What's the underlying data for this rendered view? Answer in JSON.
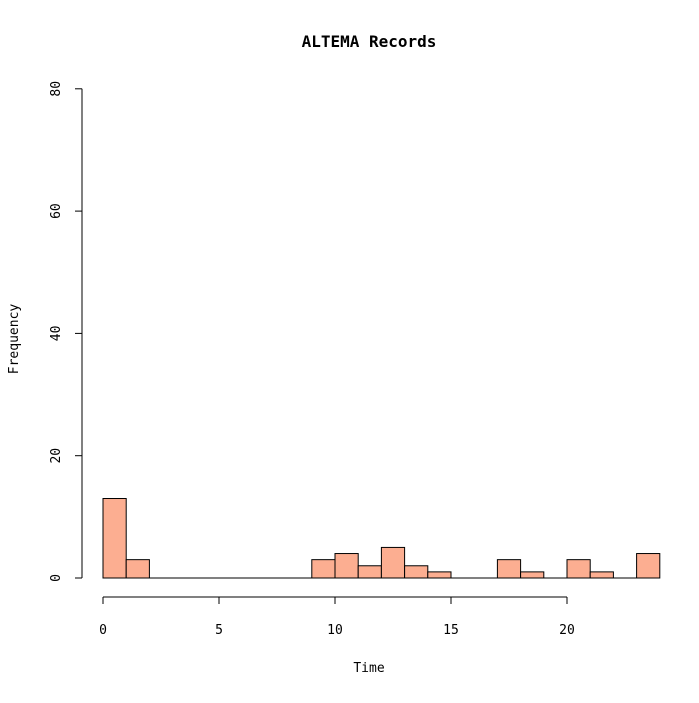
{
  "chart_data": {
    "type": "bar",
    "title": "ALTEMA Records",
    "xlabel": "Time",
    "ylabel": "Frequency",
    "bar_color": "#FCAE91",
    "bin_width": 1,
    "x_ticks": [
      0,
      5,
      10,
      15,
      20
    ],
    "y_ticks": [
      0,
      20,
      40,
      60,
      80
    ],
    "xlim": [
      0,
      24
    ],
    "ylim": [
      0,
      80
    ],
    "bins": [
      {
        "x0": 0,
        "x1": 1,
        "count": 13
      },
      {
        "x0": 1,
        "x1": 2,
        "count": 3
      },
      {
        "x0": 9,
        "x1": 10,
        "count": 3
      },
      {
        "x0": 10,
        "x1": 11,
        "count": 4
      },
      {
        "x0": 11,
        "x1": 12,
        "count": 2
      },
      {
        "x0": 12,
        "x1": 13,
        "count": 5
      },
      {
        "x0": 13,
        "x1": 14,
        "count": 2
      },
      {
        "x0": 14,
        "x1": 15,
        "count": 1
      },
      {
        "x0": 17,
        "x1": 18,
        "count": 3
      },
      {
        "x0": 18,
        "x1": 19,
        "count": 1
      },
      {
        "x0": 20,
        "x1": 21,
        "count": 3
      },
      {
        "x0": 21,
        "x1": 22,
        "count": 1
      },
      {
        "x0": 23,
        "x1": 24,
        "count": 4
      }
    ]
  }
}
